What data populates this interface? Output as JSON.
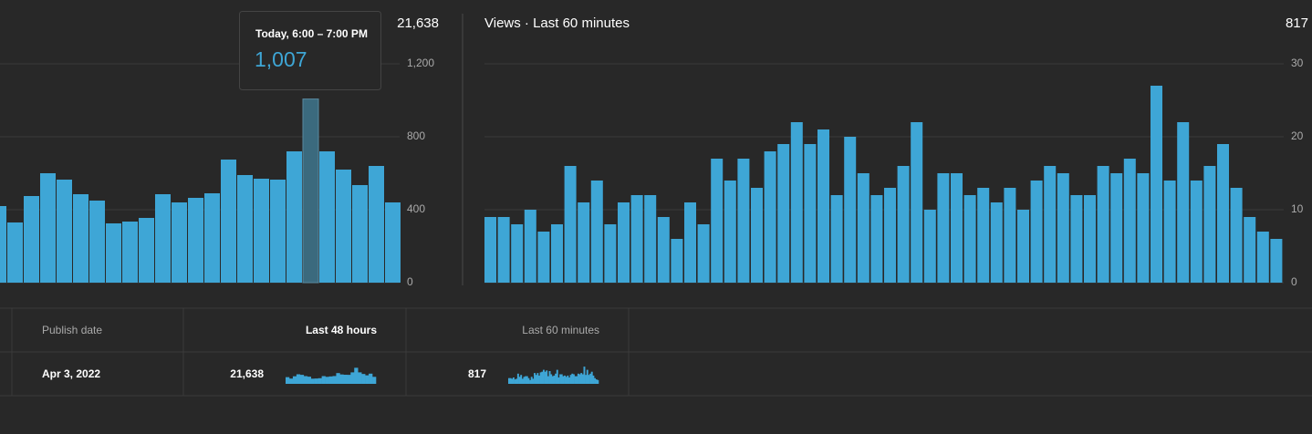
{
  "chart_data": [
    {
      "type": "bar",
      "total": "21,638",
      "color": "#3ea6d6",
      "highlight": 19,
      "categories": [
        null,
        null,
        null,
        null,
        null,
        null,
        null,
        null,
        null,
        null,
        null,
        null,
        null,
        null,
        null,
        null,
        null,
        null,
        null,
        null,
        null,
        null,
        null,
        null,
        null
      ],
      "values": [
        420,
        330,
        475,
        600,
        565,
        485,
        450,
        325,
        335,
        355,
        485,
        440,
        465,
        490,
        675,
        590,
        570,
        565,
        720,
        1007,
        720,
        620,
        535,
        640,
        440
      ],
      "ylim": [
        0,
        1200
      ],
      "yticks": [
        0,
        400,
        800,
        {
          "value": 1200,
          "label": "1,200"
        }
      ],
      "grid": true
    },
    {
      "type": "bar",
      "title": "Views · Last 60 minutes",
      "total": "817",
      "color": "#3ea6d6",
      "categories": [
        null,
        null,
        null,
        null,
        null,
        null,
        null,
        null,
        null,
        null,
        null,
        null,
        null,
        null,
        null,
        null,
        null,
        null,
        null,
        null,
        null,
        null,
        null,
        null,
        null,
        null,
        null,
        null,
        null,
        null,
        null,
        null,
        null,
        null,
        null,
        null,
        null,
        null,
        null,
        null,
        null,
        null,
        null,
        null,
        null,
        null,
        null,
        null,
        null,
        null,
        null,
        null,
        null,
        null,
        null,
        null,
        null,
        null,
        null,
        null
      ],
      "values": [
        9,
        9,
        8,
        10,
        7,
        8,
        16,
        11,
        14,
        8,
        11,
        12,
        12,
        9,
        6,
        11,
        8,
        17,
        14,
        17,
        13,
        18,
        19,
        22,
        19,
        21,
        12,
        20,
        15,
        12,
        13,
        16,
        22,
        10,
        15,
        15,
        12,
        13,
        11,
        13,
        10,
        14,
        16,
        15,
        12,
        12,
        16,
        15,
        17,
        15,
        27,
        14,
        22,
        14,
        16,
        19,
        13,
        9,
        7,
        6
      ],
      "ylim": [
        0,
        30
      ],
      "yticks": [
        0,
        10,
        20,
        30
      ],
      "grid": true
    }
  ],
  "tooltip": {
    "title": "Today, 6:00 – 7:00 PM",
    "value": "1,007"
  },
  "table": {
    "header": [
      "Publish date",
      "Last 48 hours",
      "Last 60 minutes"
    ],
    "rows": [
      [
        "Apr 3, 2022",
        "21,638",
        "817"
      ]
    ]
  }
}
